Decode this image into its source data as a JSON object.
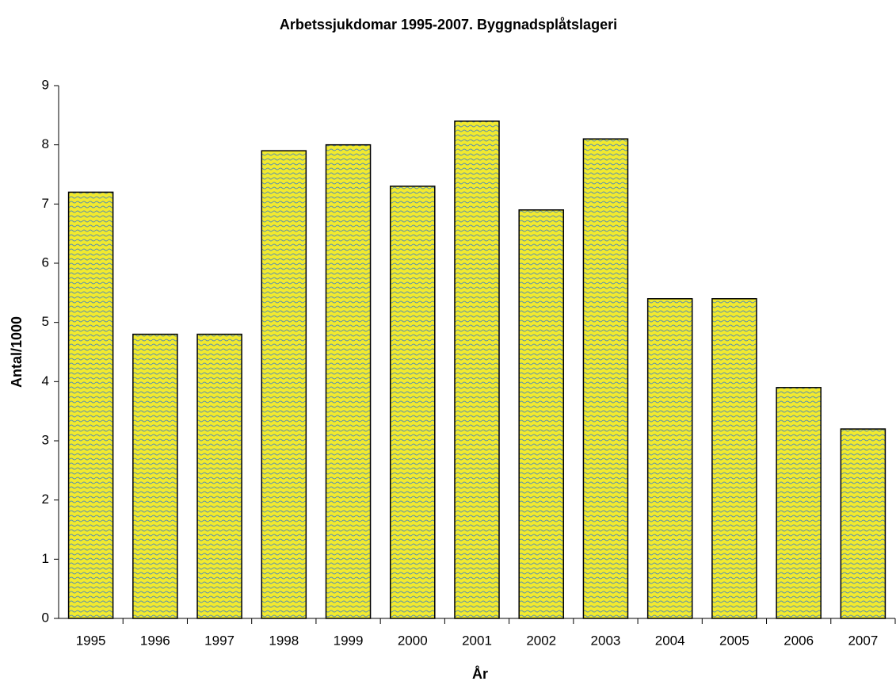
{
  "chart_data": {
    "type": "bar",
    "title": "Arbetssjukdomar 1995-2007. Byggnadsplåtslageri",
    "x_label": "År",
    "y_label": "Antal/1000",
    "categories": [
      "1995",
      "1996",
      "1997",
      "1998",
      "1999",
      "2000",
      "2001",
      "2002",
      "2003",
      "2004",
      "2005",
      "2006",
      "2007"
    ],
    "values": [
      7.2,
      4.8,
      4.8,
      7.9,
      8.0,
      7.3,
      8.4,
      6.9,
      8.1,
      5.4,
      5.4,
      3.9,
      3.2
    ],
    "color": "#f2ea2e",
    "ylim": [
      0,
      9
    ],
    "yticks": [
      0,
      1,
      2,
      3,
      4,
      5,
      6,
      7,
      8,
      9
    ],
    "grid": false
  }
}
